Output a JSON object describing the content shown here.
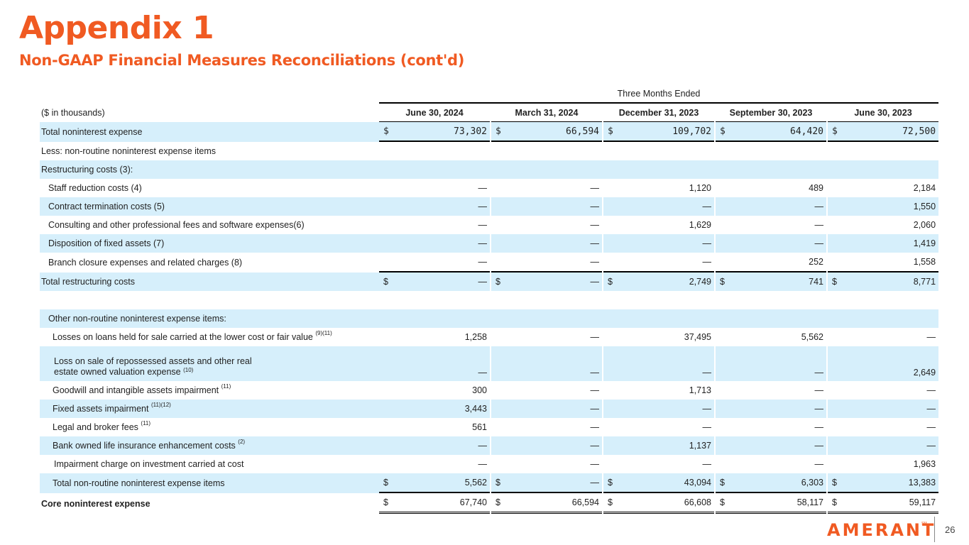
{
  "title": "Appendix 1",
  "subtitle": "Non-GAAP Financial Measures Reconciliations (cont'd)",
  "table": {
    "group_header": "Three Months Ended",
    "units_label": "($ in thousands)",
    "columns": [
      "June 30, 2024",
      "March 31, 2024",
      "December 31, 2023",
      "September 30, 2023",
      "June 30, 2023"
    ],
    "currency_symbol": "$",
    "rows": {
      "total_noninterest_expense": {
        "label": "Total noninterest expense",
        "values": [
          "73,302",
          "66,594",
          "109,702",
          "64,420",
          "72,500"
        ]
      },
      "less_nonroutine": {
        "label": "Less: non-routine noninterest expense items"
      },
      "restructuring_costs": {
        "label": "Restructuring costs (3):"
      },
      "staff_reduction": {
        "label": "Staff reduction costs (4)",
        "values": [
          "—",
          "—",
          "1,120",
          "489",
          "2,184"
        ]
      },
      "contract_termination": {
        "label": "Contract termination costs (5)",
        "values": [
          "—",
          "—",
          "—",
          "—",
          "1,550"
        ]
      },
      "consulting": {
        "label": "Consulting and other professional fees and software expenses(6)",
        "values": [
          "—",
          "—",
          "1,629",
          "—",
          "2,060"
        ]
      },
      "disposition_fixed": {
        "label": "Disposition of fixed assets (7)",
        "values": [
          "—",
          "—",
          "—",
          "—",
          "1,419"
        ]
      },
      "branch_closure": {
        "label": "Branch closure expenses and related charges (8)",
        "values": [
          "—",
          "—",
          "—",
          "252",
          "1,558"
        ]
      },
      "total_restructuring": {
        "label": "Total restructuring costs",
        "values": [
          "—",
          "—",
          "2,749",
          "741",
          "8,771"
        ]
      },
      "other_nonroutine": {
        "label": "Other non-routine noninterest expense items:"
      },
      "losses_on_loans": {
        "label": "Losses on loans held for sale carried at the lower cost or fair value",
        "note": "(9)(11)",
        "values": [
          "1,258",
          "—",
          "37,495",
          "5,562",
          "—"
        ]
      },
      "loss_on_sale": {
        "label": "Loss on sale of repossessed assets and other real estate owned valuation expense",
        "note": "(10)",
        "values": [
          "—",
          "—",
          "—",
          "—",
          "2,649"
        ]
      },
      "goodwill": {
        "label": "Goodwill and intangible assets impairment",
        "note": "(11)",
        "values": [
          "300",
          "—",
          "1,713",
          "—",
          "—"
        ]
      },
      "fixed_assets_impairment": {
        "label": "Fixed assets impairment",
        "note": "(11)(12)",
        "values": [
          "3,443",
          "—",
          "—",
          "—",
          "—"
        ]
      },
      "legal_broker": {
        "label": "Legal and broker fees",
        "note": "(11)",
        "values": [
          "561",
          "—",
          "—",
          "—",
          "—"
        ]
      },
      "boli": {
        "label": "Bank owned life insurance enhancement costs",
        "note": "(2)",
        "values": [
          "—",
          "—",
          "1,137",
          "—",
          "—"
        ]
      },
      "impairment_investment": {
        "label": "Impairment charge on investment carried at cost",
        "values": [
          "—",
          "—",
          "—",
          "—",
          "1,963"
        ]
      },
      "total_nonroutine": {
        "label": "Total non-routine noninterest expense items",
        "values": [
          "5,562",
          "—",
          "43,094",
          "6,303",
          "13,383"
        ]
      },
      "core_noninterest": {
        "label": "Core noninterest expense",
        "values": [
          "67,740",
          "66,594",
          "66,608",
          "58,117",
          "59,117"
        ]
      }
    }
  },
  "footer": {
    "brand": "AMERANT",
    "trademark": "SM",
    "page_number": "26"
  },
  "colors": {
    "accent": "#f05a22",
    "row_shade": "#d6effb"
  }
}
